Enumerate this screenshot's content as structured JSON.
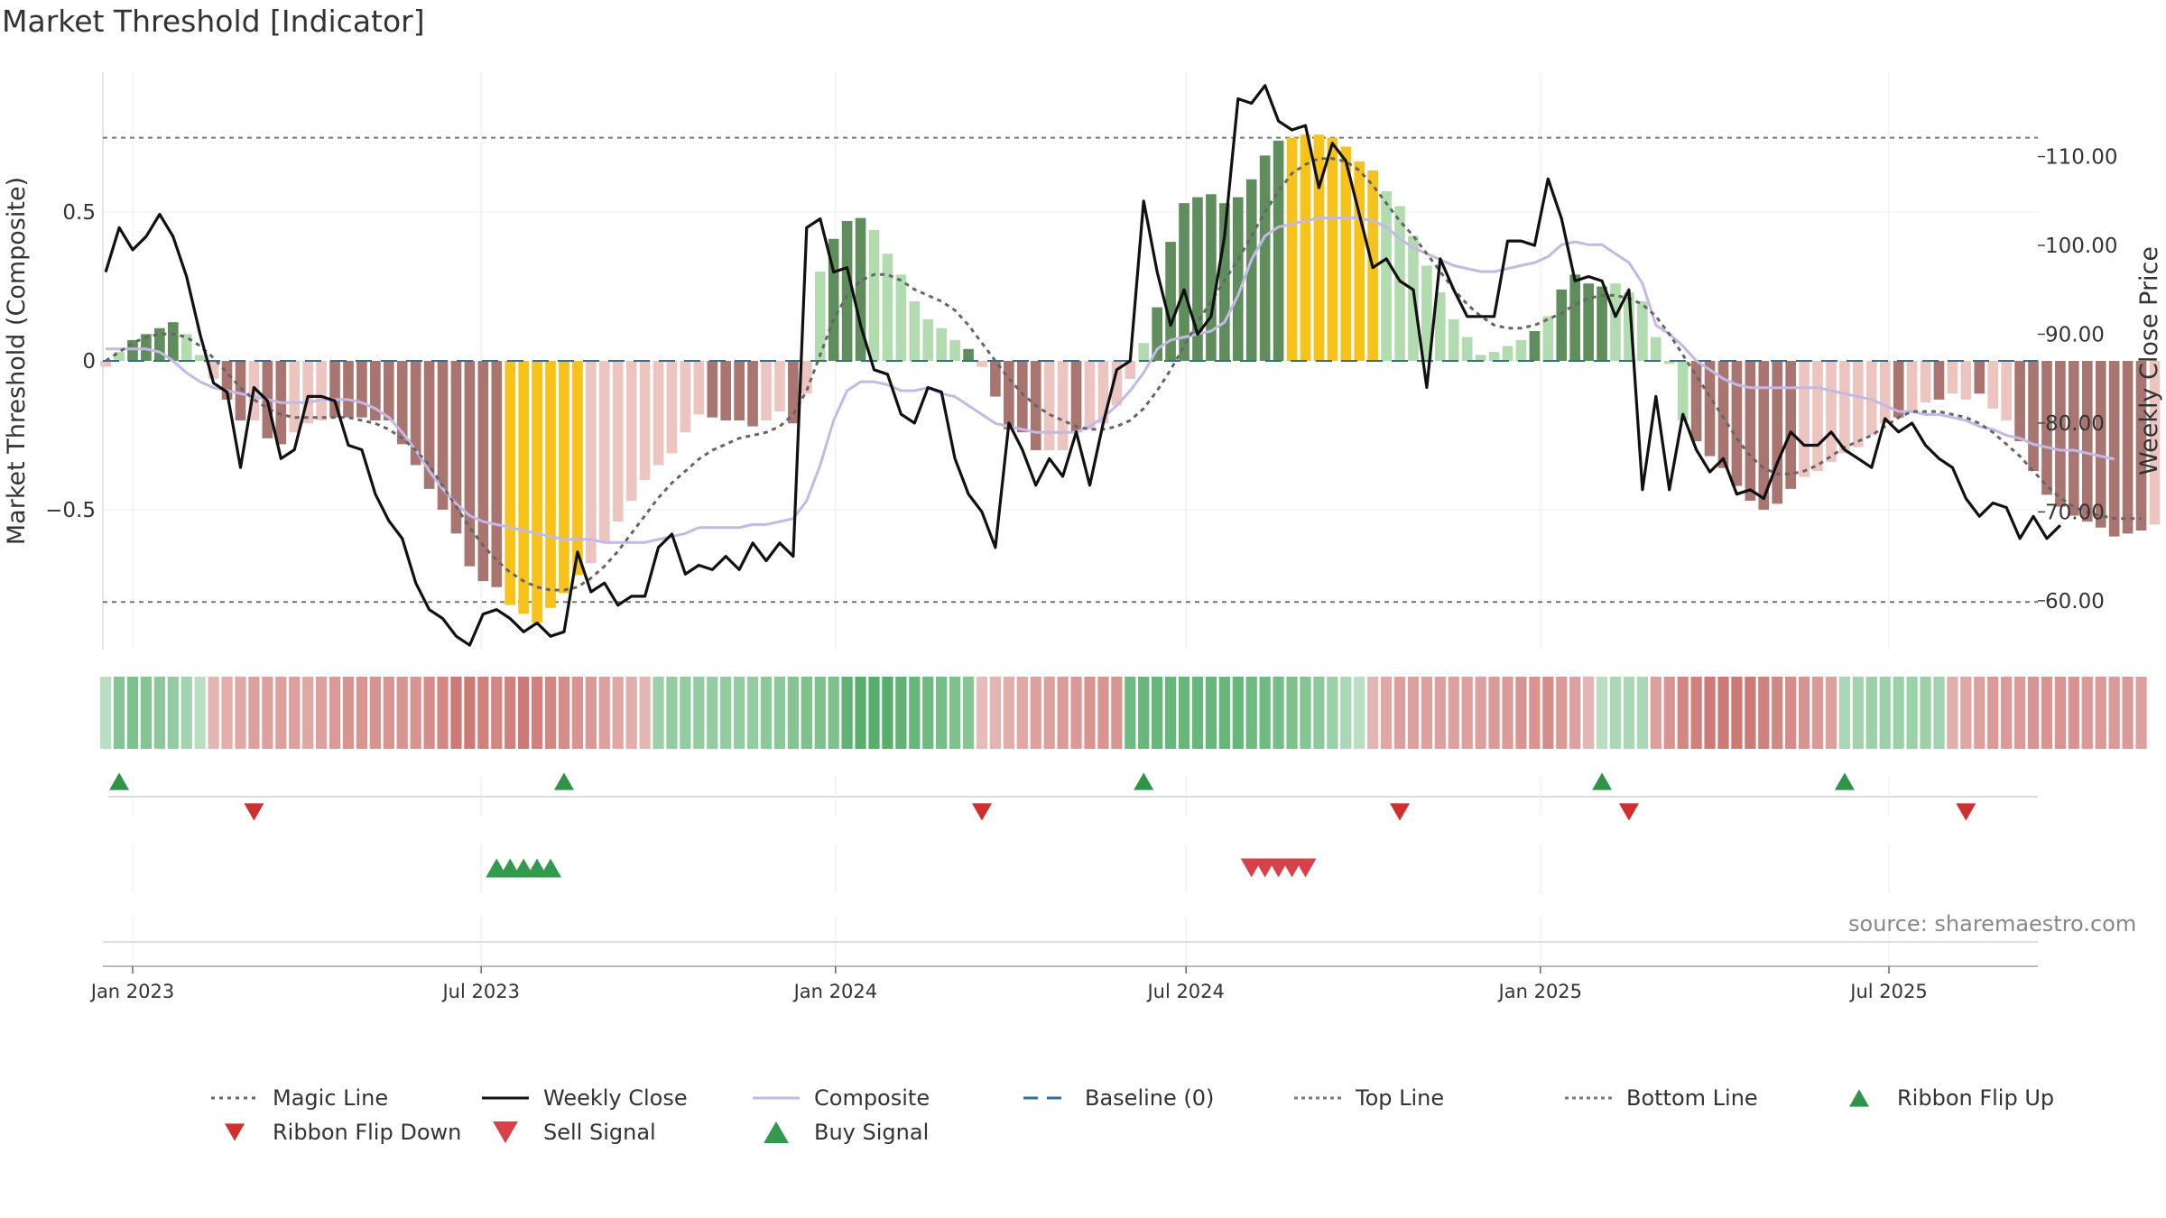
{
  "title": "Market Threshold [Indicator]",
  "source": "source: sharemaestro.com",
  "colors": {
    "dark_green": "#5f8e5c",
    "light_green": "#b3dbb0",
    "dark_red": "#a97570",
    "light_red": "#ecc4c0",
    "yellow": "#f7c21a",
    "close_line": "#111111",
    "magic_line": "#666666",
    "composite_line": "#c3b9e6",
    "baseline": "#2f6f9f",
    "threshold_line": "#777777",
    "flip_up": "#2e9447",
    "flip_down": "#d12e2e",
    "sell_signal": "#d8404a",
    "buy_signal": "#33994d"
  },
  "chart_data": {
    "type": "bar",
    "title": "Market Threshold [Indicator]",
    "ylabel": "Market Threshold (Composite)",
    "ylabel_right": "Weekly Close Price",
    "ylim": [
      -0.97,
      0.97
    ],
    "ylim_right": [
      54.5,
      119.5
    ],
    "y_ticks": [
      {
        "v": 0.5,
        "label": "0.5"
      },
      {
        "v": 0,
        "label": "0"
      },
      {
        "v": -0.5,
        "label": "−0.5"
      }
    ],
    "y_ticks_right": [
      {
        "v": 110,
        "label": "110.00"
      },
      {
        "v": 100,
        "label": "100.00"
      },
      {
        "v": 90,
        "label": "90.00"
      },
      {
        "v": 80,
        "label": "80.00"
      },
      {
        "v": 70,
        "label": "70.00"
      },
      {
        "v": 60,
        "label": "60.00"
      }
    ],
    "x_ticks": [
      "Jan 2023",
      "Jul 2023",
      "Jan 2024",
      "Jul 2024",
      "Jan 2025",
      "Jul 2025"
    ],
    "x_tick_dates": [
      "2023-01-01",
      "2023-07-01",
      "2024-01-01",
      "2024-07-01",
      "2025-01-01",
      "2025-07-01"
    ],
    "start_date": "2022-12-18",
    "top_line": 0.75,
    "bottom_line": -0.81,
    "composite_bars": [
      -0.02,
      0.03,
      0.07,
      0.09,
      0.11,
      0.13,
      0.09,
      0.02,
      -0.06,
      -0.13,
      -0.2,
      -0.2,
      -0.26,
      -0.28,
      -0.24,
      -0.21,
      -0.2,
      -0.19,
      -0.19,
      -0.19,
      -0.2,
      -0.2,
      -0.28,
      -0.35,
      -0.43,
      -0.5,
      -0.58,
      -0.69,
      -0.74,
      -0.76,
      -0.82,
      -0.85,
      -0.88,
      -0.83,
      -0.78,
      -0.72,
      -0.68,
      -0.61,
      -0.54,
      -0.47,
      -0.4,
      -0.35,
      -0.31,
      -0.24,
      -0.18,
      -0.19,
      -0.2,
      -0.2,
      -0.22,
      -0.2,
      -0.17,
      -0.21,
      -0.11,
      0.3,
      0.41,
      0.47,
      0.48,
      0.44,
      0.36,
      0.29,
      0.2,
      0.14,
      0.11,
      0.07,
      0.04,
      -0.02,
      -0.12,
      -0.23,
      -0.24,
      -0.3,
      -0.3,
      -0.3,
      -0.24,
      -0.23,
      -0.21,
      -0.15,
      -0.06,
      0.06,
      0.18,
      0.4,
      0.53,
      0.55,
      0.56,
      0.53,
      0.55,
      0.61,
      0.69,
      0.74,
      0.75,
      0.76,
      0.76,
      0.75,
      0.72,
      0.67,
      0.64,
      0.57,
      0.52,
      0.42,
      0.32,
      0.23,
      0.14,
      0.08,
      0.02,
      0.03,
      0.05,
      0.07,
      0.1,
      0.15,
      0.24,
      0.29,
      0.26,
      0.25,
      0.26,
      0.23,
      0.2,
      0.08,
      -0.01,
      -0.2,
      -0.27,
      -0.32,
      -0.36,
      -0.42,
      -0.47,
      -0.5,
      -0.48,
      -0.43,
      -0.39,
      -0.37,
      -0.34,
      -0.31,
      -0.29,
      -0.25,
      -0.21,
      -0.19,
      -0.17,
      -0.14,
      -0.13,
      -0.11,
      -0.13,
      -0.11,
      -0.16,
      -0.2,
      -0.27,
      -0.37,
      -0.45,
      -0.49,
      -0.52,
      -0.54,
      -0.56,
      -0.59,
      -0.58,
      -0.57,
      -0.55
    ],
    "bar_colors": [
      "lr",
      "lg",
      "dg",
      "dg",
      "dg",
      "dg",
      "lg",
      "lg",
      "lr",
      "dr",
      "dr",
      "lr",
      "dr",
      "dr",
      "lr",
      "lr",
      "lr",
      "dr",
      "dr",
      "dr",
      "dr",
      "dr",
      "dr",
      "dr",
      "dr",
      "dr",
      "dr",
      "dr",
      "dr",
      "dr",
      "y",
      "y",
      "y",
      "y",
      "y",
      "y",
      "lr",
      "lr",
      "lr",
      "lr",
      "lr",
      "lr",
      "lr",
      "lr",
      "lr",
      "dr",
      "dr",
      "dr",
      "dr",
      "lr",
      "lr",
      "dr",
      "lr",
      "lg",
      "dg",
      "dg",
      "dg",
      "lg",
      "lg",
      "lg",
      "lg",
      "lg",
      "lg",
      "lg",
      "dg",
      "lr",
      "dr",
      "dr",
      "dr",
      "dr",
      "lr",
      "lr",
      "dr",
      "lr",
      "lr",
      "lr",
      "lr",
      "lg",
      "dg",
      "dg",
      "dg",
      "dg",
      "dg",
      "dg",
      "dg",
      "dg",
      "dg",
      "dg",
      "y",
      "y",
      "y",
      "y",
      "y",
      "y",
      "y",
      "lg",
      "lg",
      "lg",
      "lg",
      "lg",
      "lg",
      "lg",
      "lg",
      "lg",
      "lg",
      "lg",
      "dg",
      "lg",
      "dg",
      "dg",
      "dg",
      "dg",
      "lg",
      "lg",
      "lg",
      "lg",
      "lg",
      "lg",
      "dr",
      "dr",
      "dr",
      "dr",
      "dr",
      "dr",
      "dr",
      "dr",
      "lr",
      "lr",
      "lr",
      "lr",
      "lr",
      "lr",
      "lr",
      "dr",
      "lr",
      "lr",
      "dr",
      "lr",
      "lr",
      "dr",
      "lr",
      "lr",
      "dr",
      "dr",
      "dr",
      "dr",
      "dr",
      "dr",
      "dr",
      "dr",
      "dr",
      "dr",
      "lr",
      "lr"
    ],
    "magic_line": [
      0.0,
      0.03,
      0.06,
      0.08,
      0.09,
      0.09,
      0.08,
      0.05,
      0.01,
      -0.04,
      -0.09,
      -0.13,
      -0.16,
      -0.18,
      -0.19,
      -0.19,
      -0.19,
      -0.19,
      -0.19,
      -0.2,
      -0.21,
      -0.23,
      -0.26,
      -0.3,
      -0.35,
      -0.42,
      -0.49,
      -0.56,
      -0.62,
      -0.67,
      -0.71,
      -0.74,
      -0.76,
      -0.77,
      -0.77,
      -0.76,
      -0.73,
      -0.69,
      -0.64,
      -0.58,
      -0.52,
      -0.46,
      -0.41,
      -0.37,
      -0.33,
      -0.3,
      -0.28,
      -0.26,
      -0.25,
      -0.24,
      -0.22,
      -0.18,
      -0.1,
      0.02,
      0.14,
      0.22,
      0.27,
      0.29,
      0.29,
      0.27,
      0.24,
      0.22,
      0.2,
      0.17,
      0.12,
      0.06,
      0.0,
      -0.06,
      -0.11,
      -0.15,
      -0.18,
      -0.2,
      -0.22,
      -0.23,
      -0.23,
      -0.22,
      -0.2,
      -0.16,
      -0.1,
      -0.03,
      0.05,
      0.13,
      0.2,
      0.27,
      0.34,
      0.42,
      0.5,
      0.57,
      0.63,
      0.66,
      0.68,
      0.68,
      0.67,
      0.64,
      0.59,
      0.53,
      0.47,
      0.42,
      0.36,
      0.3,
      0.24,
      0.19,
      0.15,
      0.12,
      0.11,
      0.11,
      0.12,
      0.14,
      0.16,
      0.19,
      0.21,
      0.22,
      0.22,
      0.21,
      0.19,
      0.15,
      0.09,
      0.02,
      -0.05,
      -0.12,
      -0.19,
      -0.26,
      -0.32,
      -0.36,
      -0.38,
      -0.38,
      -0.37,
      -0.35,
      -0.32,
      -0.29,
      -0.27,
      -0.25,
      -0.22,
      -0.19,
      -0.17,
      -0.17,
      -0.17,
      -0.18,
      -0.19,
      -0.21,
      -0.24,
      -0.28,
      -0.32,
      -0.37,
      -0.42,
      -0.46,
      -0.49,
      -0.51,
      -0.52,
      -0.53,
      -0.53,
      -0.53
    ],
    "composite_line": [
      0.04,
      0.04,
      0.04,
      0.04,
      0.03,
      0.0,
      -0.04,
      -0.07,
      -0.09,
      -0.1,
      -0.11,
      -0.12,
      -0.13,
      -0.14,
      -0.14,
      -0.14,
      -0.13,
      -0.13,
      -0.13,
      -0.14,
      -0.16,
      -0.19,
      -0.24,
      -0.3,
      -0.37,
      -0.43,
      -0.48,
      -0.52,
      -0.54,
      -0.55,
      -0.56,
      -0.57,
      -0.58,
      -0.59,
      -0.6,
      -0.6,
      -0.6,
      -0.61,
      -0.61,
      -0.61,
      -0.61,
      -0.6,
      -0.59,
      -0.58,
      -0.56,
      -0.56,
      -0.56,
      -0.56,
      -0.55,
      -0.55,
      -0.54,
      -0.53,
      -0.47,
      -0.35,
      -0.2,
      -0.1,
      -0.07,
      -0.07,
      -0.08,
      -0.1,
      -0.1,
      -0.09,
      -0.11,
      -0.12,
      -0.15,
      -0.18,
      -0.21,
      -0.22,
      -0.23,
      -0.24,
      -0.24,
      -0.24,
      -0.24,
      -0.22,
      -0.19,
      -0.15,
      -0.1,
      -0.04,
      0.04,
      0.07,
      0.08,
      0.09,
      0.1,
      0.13,
      0.22,
      0.34,
      0.42,
      0.45,
      0.46,
      0.47,
      0.48,
      0.48,
      0.48,
      0.48,
      0.47,
      0.45,
      0.41,
      0.38,
      0.36,
      0.34,
      0.32,
      0.31,
      0.3,
      0.3,
      0.31,
      0.32,
      0.33,
      0.35,
      0.39,
      0.4,
      0.39,
      0.39,
      0.36,
      0.33,
      0.26,
      0.12,
      0.09,
      0.05,
      0.0,
      -0.03,
      -0.06,
      -0.08,
      -0.09,
      -0.09,
      -0.09,
      -0.09,
      -0.09,
      -0.09,
      -0.1,
      -0.11,
      -0.12,
      -0.13,
      -0.15,
      -0.17,
      -0.17,
      -0.18,
      -0.18,
      -0.19,
      -0.2,
      -0.22,
      -0.23,
      -0.25,
      -0.26,
      -0.28,
      -0.29,
      -0.3,
      -0.3,
      -0.31,
      -0.32,
      -0.33
    ],
    "weekly_close": [
      97,
      102,
      99.5,
      101,
      103.5,
      101,
      96.5,
      90,
      84.5,
      83.5,
      75,
      84,
      82.5,
      76,
      77,
      83,
      83,
      82.5,
      77.5,
      77,
      72,
      69,
      67,
      62,
      59,
      58,
      56,
      55,
      58.5,
      59,
      58,
      56.5,
      57.5,
      56,
      56.5,
      65.5,
      61,
      62,
      59.5,
      60.5,
      60.5,
      66,
      67.5,
      63,
      64,
      63.5,
      65,
      63.5,
      66.5,
      64.5,
      66.5,
      65,
      102,
      103,
      97,
      97.5,
      91,
      86,
      85.5,
      81,
      80,
      84,
      83.5,
      76,
      72,
      70,
      66,
      80,
      77,
      73,
      76,
      74,
      79,
      73,
      80,
      86,
      87,
      105,
      97,
      91,
      95,
      90,
      92,
      101,
      116.5,
      116,
      118,
      114,
      113,
      113.5,
      106.5,
      111.5,
      109.5,
      103.5,
      97.5,
      98.5,
      96,
      95,
      84,
      98.5,
      95,
      92,
      92,
      92,
      100.5,
      100.5,
      100,
      107.5,
      103,
      96,
      96.5,
      96,
      92,
      95,
      72.5,
      83,
      72.5,
      81,
      77,
      74.5,
      76,
      72,
      72.5,
      71.5,
      75.5,
      79,
      77.5,
      77.5,
      79,
      77,
      76,
      75,
      80.5,
      79,
      80,
      77.5,
      76,
      75,
      71.5,
      69.5,
      71,
      70.5,
      67,
      69.5,
      67,
      68.5
    ],
    "ribbon": [
      0.2,
      0.55,
      0.6,
      0.55,
      0.5,
      0.45,
      0.35,
      0.2,
      -0.3,
      -0.35,
      -0.4,
      -0.45,
      -0.45,
      -0.45,
      -0.45,
      -0.4,
      -0.45,
      -0.5,
      -0.55,
      -0.55,
      -0.55,
      -0.55,
      -0.55,
      -0.55,
      -0.6,
      -0.65,
      -0.75,
      -0.75,
      -0.7,
      -0.65,
      -0.7,
      -0.75,
      -0.7,
      -0.65,
      -0.6,
      -0.55,
      -0.5,
      -0.45,
      -0.4,
      -0.35,
      -0.3,
      0.4,
      0.45,
      0.45,
      0.45,
      0.45,
      0.45,
      0.45,
      0.45,
      0.5,
      0.5,
      0.55,
      0.6,
      0.6,
      0.6,
      0.8,
      0.85,
      0.85,
      0.85,
      0.8,
      0.75,
      0.7,
      0.65,
      0.6,
      0.55,
      -0.25,
      -0.3,
      -0.35,
      -0.4,
      -0.45,
      -0.45,
      -0.5,
      -0.5,
      -0.55,
      -0.55,
      -0.55,
      0.7,
      0.75,
      0.75,
      0.75,
      0.75,
      0.75,
      0.75,
      0.75,
      0.75,
      0.7,
      0.7,
      0.65,
      0.6,
      0.55,
      0.5,
      0.4,
      0.3,
      0.2,
      -0.3,
      -0.4,
      -0.45,
      -0.45,
      -0.45,
      -0.45,
      -0.45,
      -0.45,
      -0.45,
      -0.5,
      -0.5,
      -0.55,
      -0.55,
      -0.6,
      -0.5,
      -0.45,
      -0.3,
      0.2,
      0.3,
      0.3,
      0.3,
      -0.45,
      -0.55,
      -0.65,
      -0.7,
      -0.75,
      -0.75,
      -0.75,
      -0.75,
      -0.7,
      -0.65,
      -0.6,
      -0.55,
      -0.5,
      -0.45,
      0.3,
      0.35,
      0.4,
      0.4,
      0.4,
      0.4,
      0.4,
      0.35,
      -0.35,
      -0.4,
      -0.45,
      -0.5,
      -0.5,
      -0.5,
      -0.55,
      -0.55,
      -0.55,
      -0.55,
      -0.5,
      -0.5,
      -0.5,
      -0.5,
      -0.45
    ],
    "ribbon_flip_up": [
      "2022-12-25",
      "2023-08-13",
      "2024-06-09",
      "2025-02-02",
      "2025-06-08"
    ],
    "ribbon_flip_down": [
      "2023-03-05",
      "2024-03-17",
      "2024-10-20",
      "2025-02-16",
      "2025-08-10"
    ],
    "buy_signal": [
      "2023-07-09",
      "2023-07-16",
      "2023-07-23",
      "2023-07-30",
      "2023-08-06"
    ],
    "sell_signal": [
      "2024-08-04",
      "2024-08-11",
      "2024-08-18",
      "2024-08-25",
      "2024-09-01"
    ],
    "series_names": [
      "Magic Line",
      "Weekly Close",
      "Composite",
      "Baseline (0)",
      "Top Line",
      "Bottom Line",
      "Ribbon Flip Up",
      "Ribbon Flip Down",
      "Sell Signal",
      "Buy Signal"
    ],
    "grid": true,
    "legend_position": "bottom"
  }
}
